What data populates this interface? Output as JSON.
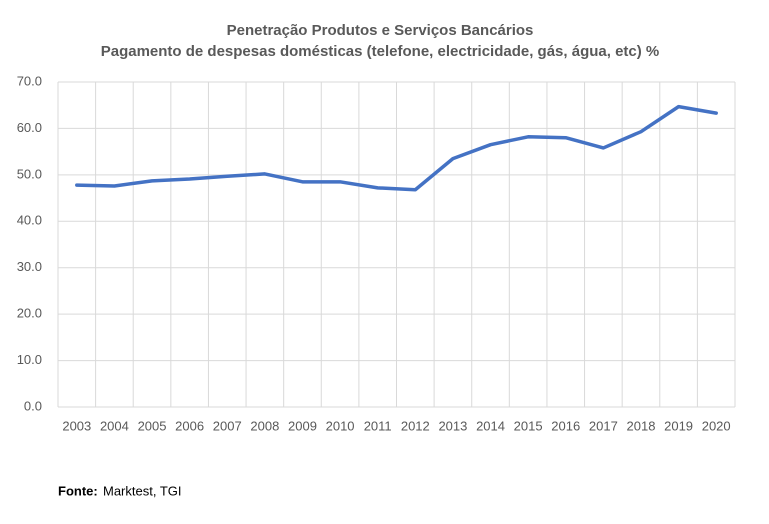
{
  "chart_data": {
    "type": "line",
    "title": "Penetração Produtos e Serviços Bancários",
    "subtitle": "Pagamento de despesas domésticas (telefone, electricidade, gás, água, etc) %",
    "categories": [
      "2003",
      "2004",
      "2005",
      "2006",
      "2007",
      "2008",
      "2009",
      "2010",
      "2011",
      "2012",
      "2013",
      "2014",
      "2015",
      "2016",
      "2017",
      "2018",
      "2019",
      "2020"
    ],
    "series": [
      {
        "color": "#4472c4",
        "values": [
          47.8,
          47.6,
          48.7,
          49.1,
          49.7,
          50.2,
          48.5,
          48.5,
          47.2,
          46.8,
          53.5,
          56.5,
          58.2,
          58.0,
          55.8,
          59.3,
          64.7,
          63.3
        ]
      }
    ],
    "ylim": [
      0,
      70
    ],
    "yticks": [
      {
        "value": 0,
        "label": "0.0"
      },
      {
        "value": 10,
        "label": "10.0"
      },
      {
        "value": 20,
        "label": "20.0"
      },
      {
        "value": 30,
        "label": "30.0"
      },
      {
        "value": 40,
        "label": "40.0"
      },
      {
        "value": 50,
        "label": "50.0"
      },
      {
        "value": 60,
        "label": "60.0"
      },
      {
        "value": 70,
        "label": "70.0"
      }
    ],
    "grid": true,
    "source_label": "Fonte:",
    "source": "Marktest, TGI"
  }
}
